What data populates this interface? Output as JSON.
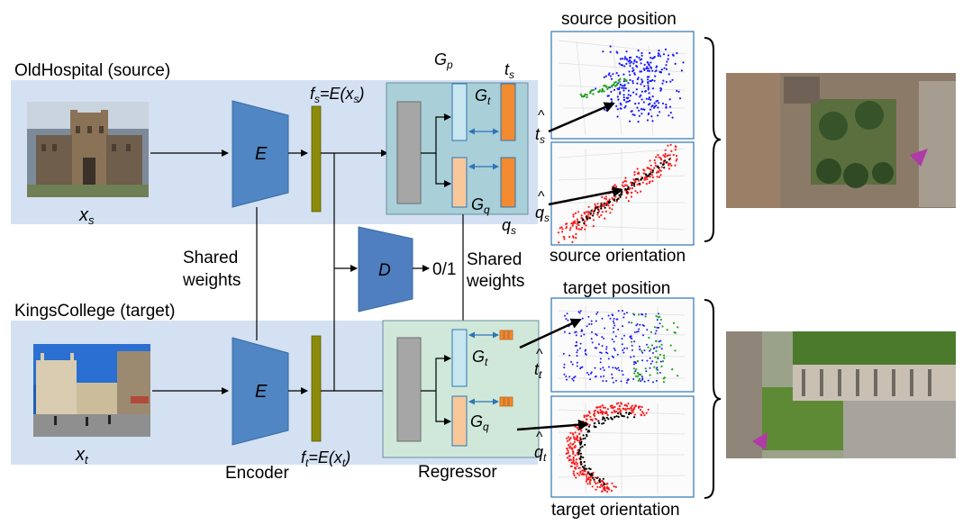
{
  "labels": {
    "source_domain": "OldHospital (source)",
    "target_domain": "KingsCollege (target)",
    "xs": "x",
    "xs_sub": "s",
    "xt": "x",
    "xt_sub": "t",
    "encoder_letter_src": "E",
    "encoder_letter_tgt": "E",
    "encoder_caption": "Encoder",
    "shared_weights_left_1": "Shared",
    "shared_weights_left_2": "weights",
    "shared_weights_right_1": "Shared",
    "shared_weights_right_2": "weights",
    "fs_f": "f",
    "fs_sub": "s",
    "fs_eq": "=E(x",
    "fs_sub2": "s",
    "fs_close": ")",
    "ft_f": "f",
    "ft_sub": "t",
    "ft_eq": "=E(x",
    "ft_sub2": "t",
    "ft_close": ")",
    "discriminator": "D",
    "disc_output": "0/1",
    "gp_G": "G",
    "gp_sub": "p",
    "ts_t": "t",
    "ts_sub": "s",
    "qs_q": "q",
    "qs_sub": "s",
    "gt_G_src": "G",
    "gt_sub_src": "t",
    "gq_G_src": "G",
    "gq_sub_src": "q",
    "gt_G_tgt": "G",
    "gt_sub_tgt": "t",
    "gq_G_tgt": "G",
    "gq_sub_tgt": "q",
    "regressor_caption": "Regressor",
    "ts_hat_t": "t",
    "ts_hat_sub": "s",
    "qs_hat_q": "q",
    "qs_hat_sub": "s",
    "tt_hat_t": "t",
    "tt_hat_sub": "t",
    "qt_hat_q": "q",
    "qt_hat_sub": "t",
    "hat": "^",
    "source_position": "source position",
    "source_orientation": "source orientation",
    "target_position": "target position",
    "target_orientation": "target orientation"
  },
  "colors": {
    "band": "#d4e1f3",
    "encoder": "#4f86c3",
    "feature": "#8b8a0a",
    "regressor_src": "#a9cfd9",
    "regressor_tgt": "#cfe8d9",
    "shared_block": "#a6a6a6",
    "gt_block": "#c7e6ef",
    "gq_block": "#f8c89b",
    "out_block": "#f28a30",
    "disc": "#4f7fc0",
    "pos_blue": "#1a1aff",
    "pos_green": "#22a022",
    "ori_red": "#ff1a1a",
    "ori_black": "#000000"
  },
  "icons": [
    "aerial-photo-source",
    "aerial-photo-target",
    "building-photo-source",
    "building-photo-target",
    "camera-marker-icon"
  ]
}
